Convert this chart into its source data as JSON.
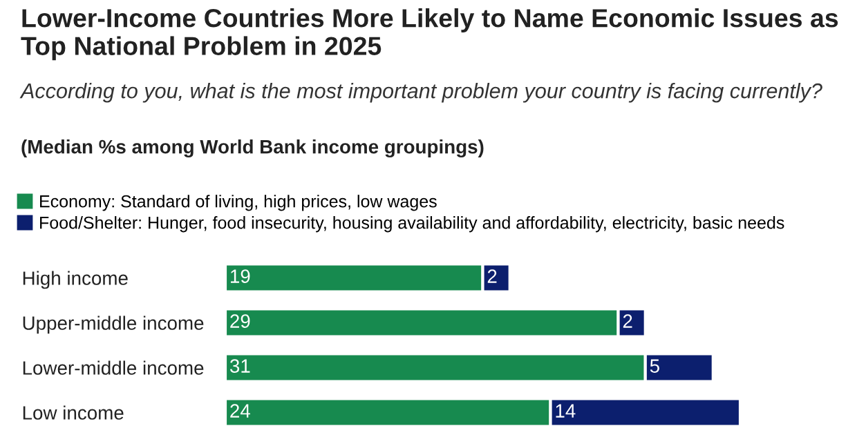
{
  "chart_data": {
    "type": "bar",
    "orientation": "horizontal",
    "stacked": true,
    "data_labels": true,
    "tick_labels": "y",
    "grid": false,
    "legend": "top",
    "title": "Lower-Income Countries More Likely to Name Economic Issues as Top National Problem in 2025",
    "subtitle": "According to you, what is the most important problem your country is facing currently?",
    "annotations": [
      "(Median %s among World Bank income groupings)"
    ],
    "categories": [
      "High income",
      "Upper-middle income",
      "Lower-middle income",
      "Low income"
    ],
    "series": [
      {
        "name": "Economy: Standard of living, high prices, low wages",
        "color": "#178a4f",
        "values": [
          19,
          29,
          31,
          24
        ]
      },
      {
        "name": "Food/Shelter: Hunger, food insecurity, housing availability and affordability, electricity, basic needs",
        "color": "#0c1f6e",
        "values": [
          2,
          2,
          5,
          14
        ]
      }
    ]
  }
}
